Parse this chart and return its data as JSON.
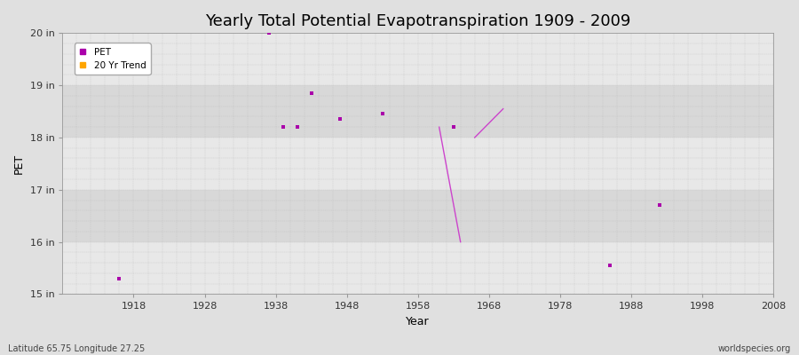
{
  "title": "Yearly Total Potential Evapotranspiration 1909 - 2009",
  "xlabel": "Year",
  "ylabel": "PET",
  "xlim": [
    1908,
    2008
  ],
  "ylim": [
    15,
    20
  ],
  "yticks": [
    15,
    16,
    17,
    18,
    19,
    20
  ],
  "ytick_labels": [
    "15 in",
    "16 in",
    "17 in",
    "18 in",
    "19 in",
    "20 in"
  ],
  "xticks": [
    1918,
    1928,
    1938,
    1948,
    1958,
    1968,
    1978,
    1988,
    1998,
    2008
  ],
  "pet_color": "#AA00AA",
  "trend_color": "#CC44CC",
  "band_colors": [
    "#E8E8E8",
    "#D8D8D8"
  ],
  "grid_color": "#BBBBBB",
  "fig_bg": "#E0E0E0",
  "pet_points": [
    [
      1916,
      15.3
    ],
    [
      1937,
      20.0
    ],
    [
      1939,
      18.2
    ],
    [
      1941,
      18.2
    ],
    [
      1943,
      18.85
    ],
    [
      1947,
      18.35
    ],
    [
      1953,
      18.45
    ],
    [
      1963,
      18.2
    ],
    [
      1985,
      15.55
    ],
    [
      1992,
      16.7
    ]
  ],
  "trend_segments": [
    [
      [
        1961,
        18.2
      ],
      [
        1964,
        16.0
      ]
    ],
    [
      [
        1966,
        18.0
      ],
      [
        1970,
        18.55
      ]
    ]
  ],
  "bottom_left_text": "Latitude 65.75 Longitude 27.25",
  "bottom_right_text": "worldspecies.org",
  "title_fontsize": 13,
  "label_fontsize": 9,
  "tick_fontsize": 8
}
